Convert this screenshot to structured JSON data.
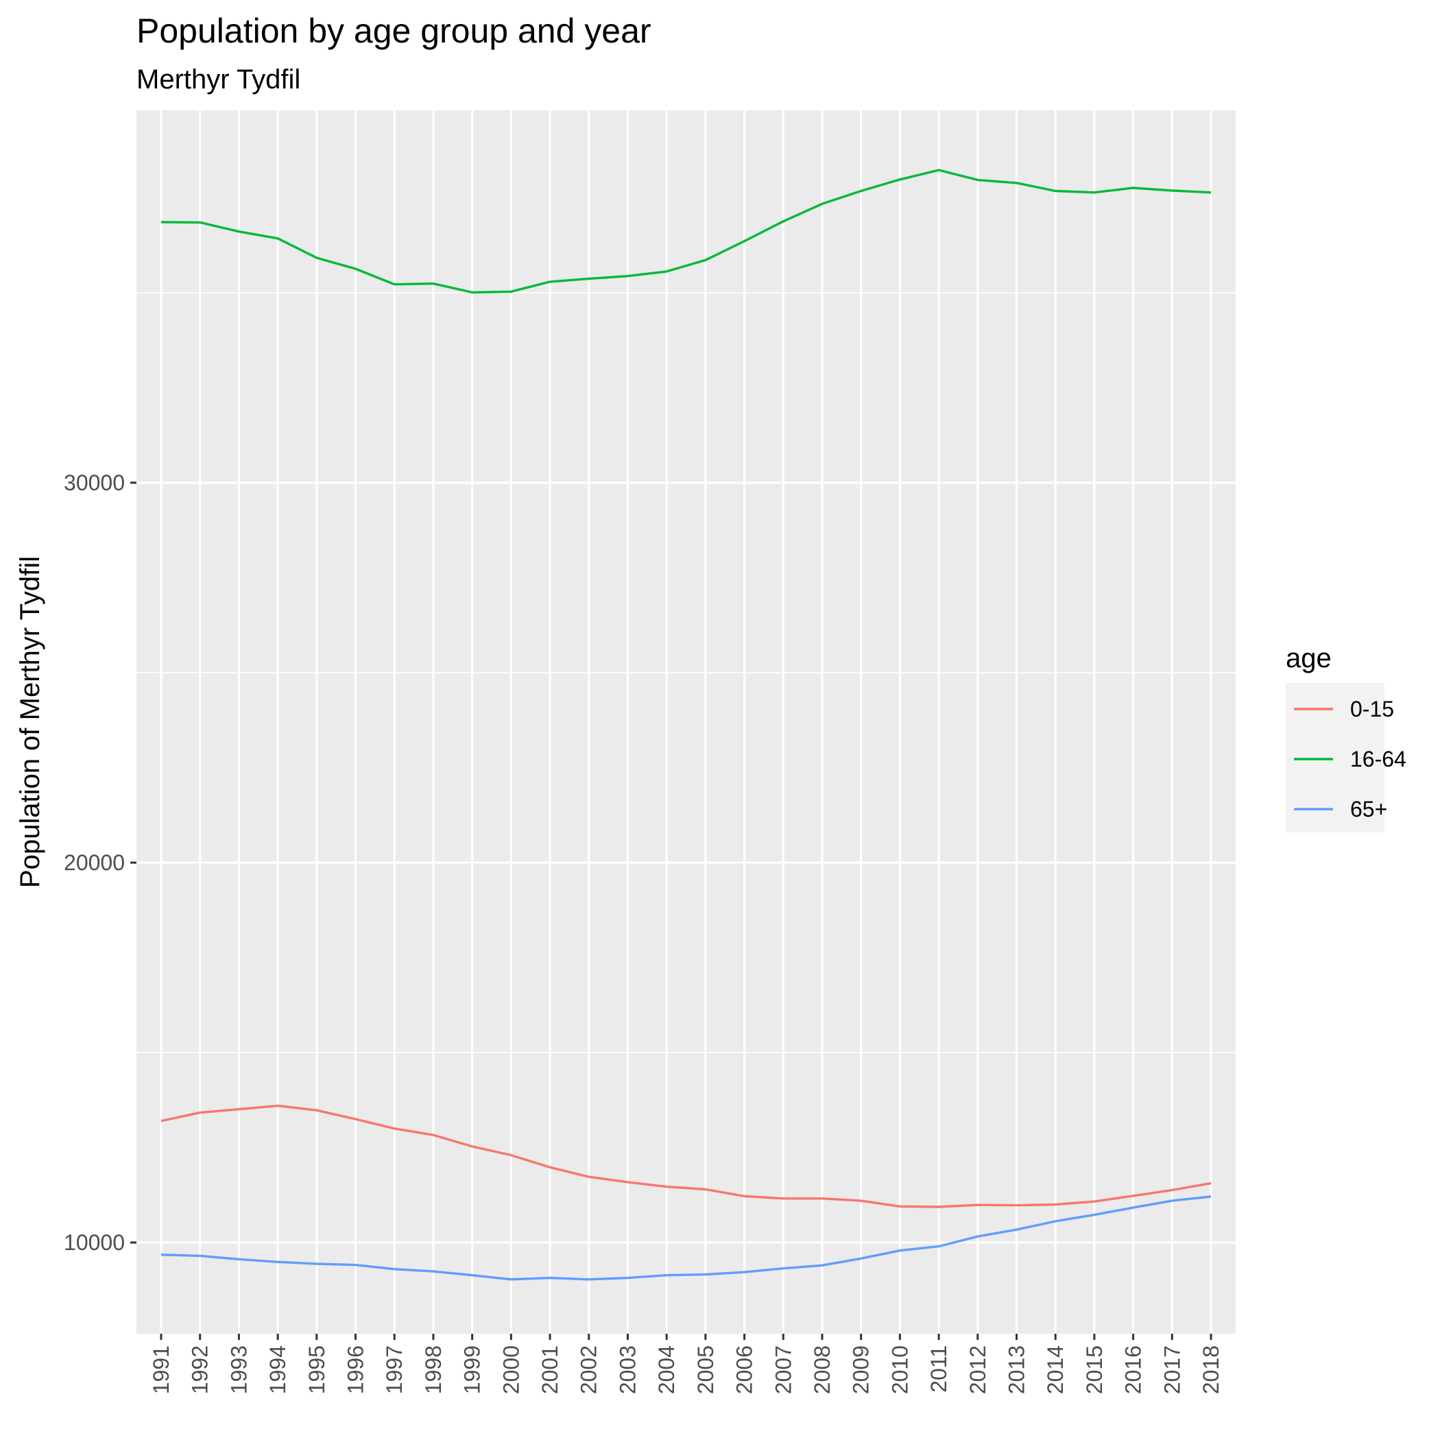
{
  "chart_data": {
    "type": "line",
    "title": "Population by age group and year",
    "subtitle": "Merthyr Tydfil",
    "xlabel": "",
    "ylabel": "Population of Merthyr Tydfil",
    "x": [
      "1991",
      "1992",
      "1993",
      "1994",
      "1995",
      "1996",
      "1997",
      "1998",
      "1999",
      "2000",
      "2001",
      "2002",
      "2003",
      "2004",
      "2005",
      "2006",
      "2007",
      "2008",
      "2009",
      "2010",
      "2011",
      "2012",
      "2013",
      "2014",
      "2015",
      "2016",
      "2017",
      "2018"
    ],
    "ylim": [
      7600,
      39800
    ],
    "y_ticks": [
      10000,
      20000,
      30000
    ],
    "y_tick_labels": [
      "10000",
      "20000",
      "30000"
    ],
    "grid": true,
    "legend": {
      "title": "age",
      "position": "right"
    },
    "series": [
      {
        "name": "0-15",
        "color": "#F8766D",
        "values": [
          13200,
          13420,
          13510,
          13600,
          13480,
          13250,
          13000,
          12830,
          12530,
          12300,
          11980,
          11730,
          11590,
          11470,
          11400,
          11220,
          11160,
          11160,
          11100,
          10950,
          10940,
          10990,
          10980,
          11000,
          11080,
          11230,
          11380,
          11560
        ]
      },
      {
        "name": "16-64",
        "color": "#00BA38",
        "values": [
          36860,
          36850,
          36610,
          36430,
          35920,
          35630,
          35220,
          35240,
          35010,
          35030,
          35290,
          35370,
          35440,
          35560,
          35860,
          36360,
          36880,
          37340,
          37680,
          37980,
          38230,
          37970,
          37890,
          37680,
          37640,
          37760,
          37690,
          37640
        ]
      },
      {
        "name": "65+",
        "color": "#619CFF",
        "values": [
          9680,
          9650,
          9560,
          9490,
          9440,
          9410,
          9300,
          9240,
          9140,
          9030,
          9070,
          9030,
          9070,
          9140,
          9160,
          9220,
          9320,
          9400,
          9580,
          9790,
          9900,
          10160,
          10340,
          10560,
          10730,
          10920,
          11100,
          11210
        ]
      }
    ]
  }
}
